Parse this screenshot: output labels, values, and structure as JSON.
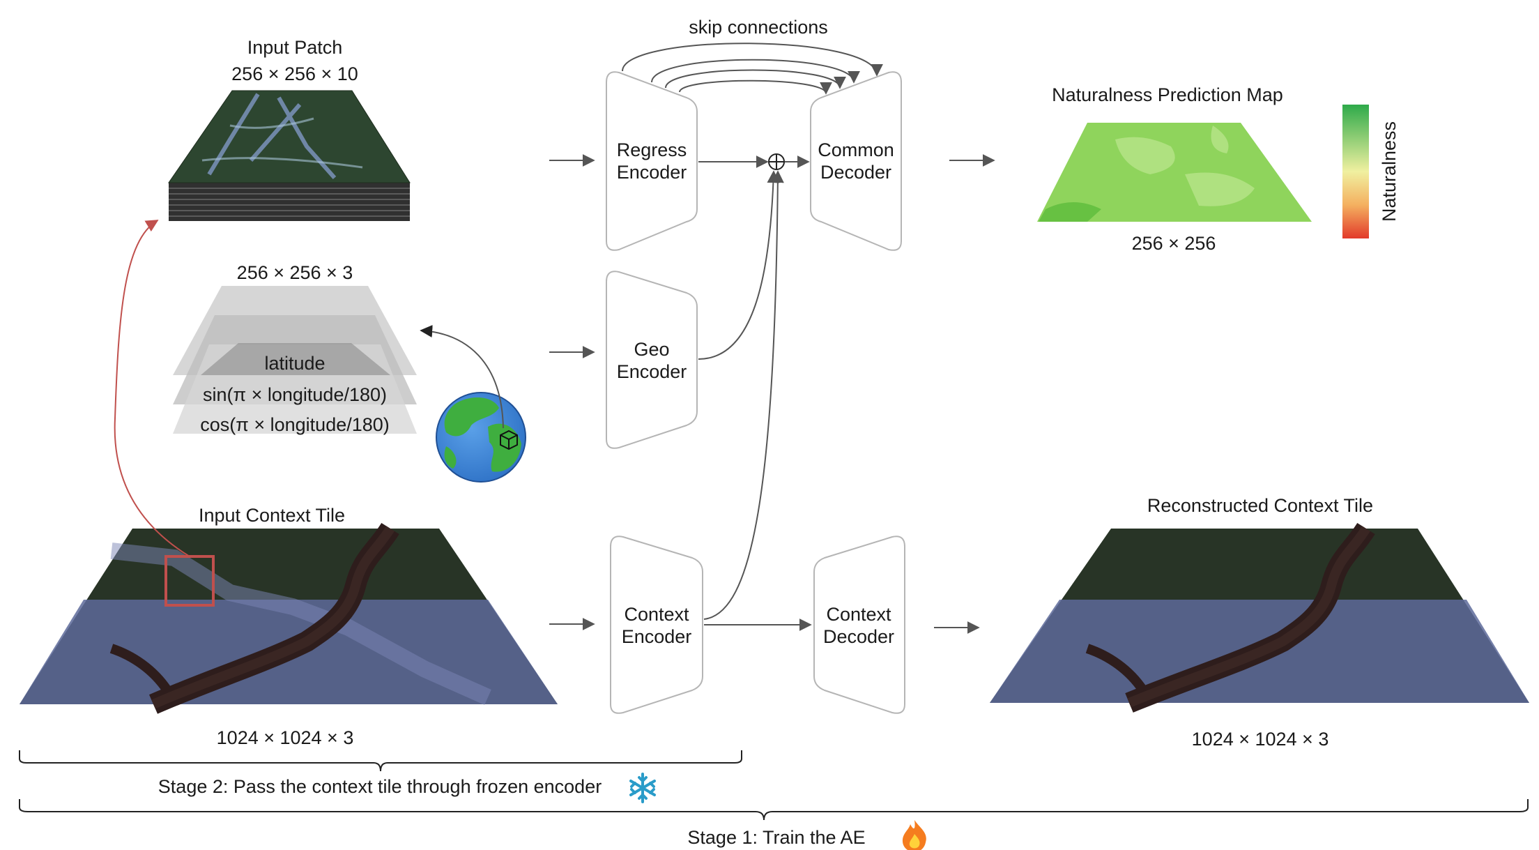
{
  "colors": {
    "satellite_dark": "#23301f",
    "satellite_city": "#5d6a9a",
    "river": "#2e1d1c",
    "map_green": "#8fd45c",
    "scale_top": "#2eaa4a",
    "scale_mid": "#f0f0a0",
    "scale_bottom": "#e23a2a",
    "connector_red": "#c0504d",
    "connector_black": "#222222",
    "block_stroke": "#b5b5b5"
  },
  "input_patch": {
    "title": "Input Patch",
    "dims": "256 × 256 × 10"
  },
  "geo_stack": {
    "dims": "256 × 256 × 3",
    "layers": [
      "latitude",
      "sin(π × longitude/180)",
      "cos(π × longitude/180)"
    ],
    "icon": "globe-icon"
  },
  "input_context_tile": {
    "title": "Input Context Tile",
    "dims": "1024 × 1024 × 3"
  },
  "skip_label": "skip connections",
  "blocks": {
    "regress_encoder": [
      "Regress",
      "Encoder"
    ],
    "common_decoder": [
      "Common",
      "Decoder"
    ],
    "geo_encoder": [
      "Geo",
      "Encoder"
    ],
    "context_encoder": [
      "Context",
      "Encoder"
    ],
    "context_decoder": [
      "Context",
      "Decoder"
    ]
  },
  "prediction_map": {
    "title": "Naturalness Prediction Map",
    "dims": "256 × 256",
    "scale_label": "Naturalness"
  },
  "reconstructed_tile": {
    "title": "Reconstructed Context Tile",
    "dims": "1024 × 1024 × 3"
  },
  "stages": {
    "stage2": "Stage 2: Pass the context tile through frozen encoder",
    "stage2_icon": "snowflake-icon",
    "stage1": "Stage 1: Train the AE",
    "stage1_icon": "fire-icon"
  }
}
